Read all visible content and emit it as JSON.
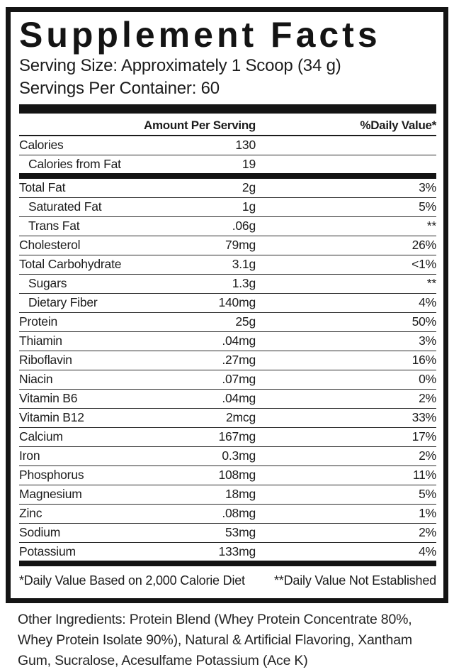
{
  "label": {
    "title": "Supplement Facts",
    "serving_size": "Serving Size: Approximately 1 Scoop (34 g)",
    "servings_per_container": "Servings Per Container: 60",
    "columns": {
      "amount_header": "Amount Per Serving",
      "daily_value_header": "%Daily Value*"
    },
    "rows": [
      {
        "name": "Calories",
        "amount": "130",
        "dv": "",
        "indent": false,
        "group_end": false
      },
      {
        "name": "Calories from Fat",
        "amount": "19",
        "dv": "",
        "indent": true,
        "group_end": true
      },
      {
        "name": "Total Fat",
        "amount": "2g",
        "dv": "3%",
        "indent": false,
        "group_end": false
      },
      {
        "name": "Saturated Fat",
        "amount": "1g",
        "dv": "5%",
        "indent": true,
        "group_end": false
      },
      {
        "name": "Trans Fat",
        "amount": ".06g",
        "dv": "**",
        "indent": true,
        "group_end": false
      },
      {
        "name": "Cholesterol",
        "amount": "79mg",
        "dv": "26%",
        "indent": false,
        "group_end": false
      },
      {
        "name": "Total Carbohydrate",
        "amount": "3.1g",
        "dv": "<1%",
        "indent": false,
        "group_end": false
      },
      {
        "name": "Sugars",
        "amount": "1.3g",
        "dv": "**",
        "indent": true,
        "group_end": false
      },
      {
        "name": "Dietary Fiber",
        "amount": "140mg",
        "dv": "4%",
        "indent": true,
        "group_end": false
      },
      {
        "name": "Protein",
        "amount": "25g",
        "dv": "50%",
        "indent": false,
        "group_end": false
      },
      {
        "name": "Thiamin",
        "amount": ".04mg",
        "dv": "3%",
        "indent": false,
        "group_end": false
      },
      {
        "name": "Riboflavin",
        "amount": ".27mg",
        "dv": "16%",
        "indent": false,
        "group_end": false
      },
      {
        "name": "Niacin",
        "amount": ".07mg",
        "dv": "0%",
        "indent": false,
        "group_end": false
      },
      {
        "name": "Vitamin B6",
        "amount": ".04mg",
        "dv": "2%",
        "indent": false,
        "group_end": false
      },
      {
        "name": "Vitamin B12",
        "amount": "2mcg",
        "dv": "33%",
        "indent": false,
        "group_end": false
      },
      {
        "name": "Calcium",
        "amount": "167mg",
        "dv": "17%",
        "indent": false,
        "group_end": false
      },
      {
        "name": "Iron",
        "amount": "0.3mg",
        "dv": "2%",
        "indent": false,
        "group_end": false
      },
      {
        "name": "Phosphorus",
        "amount": "108mg",
        "dv": "11%",
        "indent": false,
        "group_end": false
      },
      {
        "name": "Magnesium",
        "amount": "18mg",
        "dv": "5%",
        "indent": false,
        "group_end": false
      },
      {
        "name": "Zinc",
        "amount": ".08mg",
        "dv": "1%",
        "indent": false,
        "group_end": false
      },
      {
        "name": "Sodium",
        "amount": "53mg",
        "dv": "2%",
        "indent": false,
        "group_end": false
      },
      {
        "name": "Potassium",
        "amount": "133mg",
        "dv": "4%",
        "indent": false,
        "group_end": true
      }
    ],
    "footnotes": {
      "left": "*Daily Value Based on 2,000 Calorie Diet",
      "right": "**Daily Value Not Established"
    },
    "other_ingredients": "Other Ingredients: Protein Blend (Whey Protein Concentrate 80%, Whey Protein Isolate 90%), Natural & Artificial Flavoring, Xantham Gum, Sucralose, Acesulfame Potassium (Ace K)",
    "colors": {
      "ink": "#141414",
      "background": "#ffffff"
    }
  }
}
